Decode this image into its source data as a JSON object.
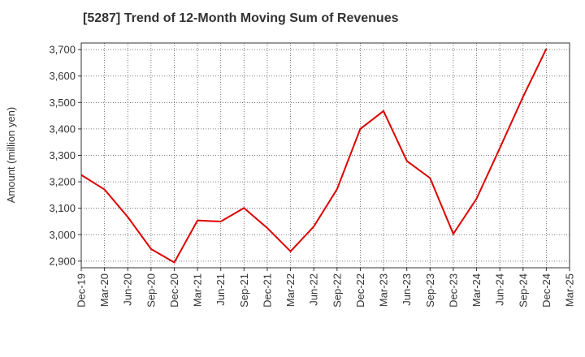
{
  "chart_data": {
    "type": "line",
    "title": "[5287]  Trend of 12-Month Moving Sum of Revenues",
    "xlabel": "",
    "ylabel": "Amount (million yen)",
    "categories": [
      "Dec-19",
      "Mar-20",
      "Jun-20",
      "Sep-20",
      "Dec-20",
      "Mar-21",
      "Jun-21",
      "Sep-21",
      "Dec-21",
      "Mar-22",
      "Jun-22",
      "Sep-22",
      "Dec-22",
      "Mar-23",
      "Jun-23",
      "Sep-23",
      "Dec-23",
      "Mar-24",
      "Jun-24",
      "Sep-24",
      "Dec-24",
      "Mar-25"
    ],
    "series": [
      {
        "color": "#dd0000",
        "values": [
          3226,
          3171,
          3067,
          2946,
          2895,
          3054,
          3050,
          3101,
          3025,
          2937,
          3031,
          3172,
          3400,
          3468,
          3279,
          3214,
          3003,
          3136,
          3327,
          3522,
          3703,
          null
        ]
      }
    ],
    "yticks": [
      "2,900",
      "3,000",
      "3,100",
      "3,200",
      "3,300",
      "3,400",
      "3,500",
      "3,600",
      "3,700"
    ],
    "ytick_values": [
      2900,
      3000,
      3100,
      3200,
      3300,
      3400,
      3500,
      3600,
      3700
    ],
    "ylim": [
      2875,
      3725
    ],
    "grid": true,
    "grid_style": "dotted",
    "legend": "none"
  }
}
